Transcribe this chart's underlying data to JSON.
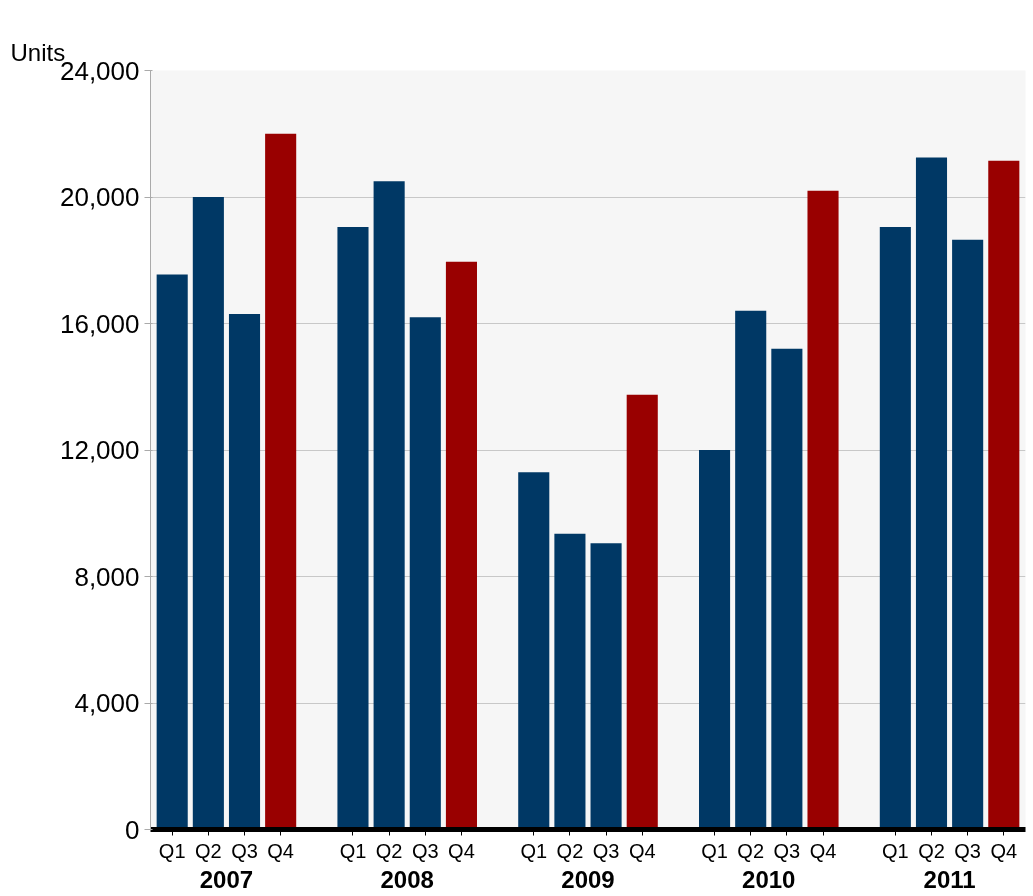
{
  "chart_data": {
    "type": "bar",
    "ylabel": "Units",
    "categories": [
      "Q1",
      "Q2",
      "Q3",
      "Q4",
      "Q1",
      "Q2",
      "Q3",
      "Q4",
      "Q1",
      "Q2",
      "Q3",
      "Q4",
      "Q1",
      "Q2",
      "Q3",
      "Q4",
      "Q1",
      "Q2",
      "Q3",
      "Q4"
    ],
    "values": [
      17550,
      20000,
      16300,
      22000,
      19050,
      20500,
      16200,
      17950,
      11300,
      9350,
      9050,
      13750,
      12000,
      16400,
      15200,
      20200,
      19050,
      21250,
      18650,
      21150
    ],
    "colors": [
      "#003865",
      "#003865",
      "#003865",
      "#990000",
      "#003865",
      "#003865",
      "#003865",
      "#990000",
      "#003865",
      "#003865",
      "#003865",
      "#990000",
      "#003865",
      "#003865",
      "#003865",
      "#990000",
      "#003865",
      "#003865",
      "#003865",
      "#990000"
    ],
    "annotations": [
      "2007",
      "2008",
      "2009",
      "2010",
      "2011"
    ],
    "ylim": [
      0,
      24000
    ],
    "yticks": [
      0,
      {
        "value": 4000,
        "label": "4,000"
      },
      {
        "value": 8000,
        "label": "8,000"
      },
      {
        "value": 12000,
        "label": "12,000"
      },
      {
        "value": 16000,
        "label": "16,000"
      },
      {
        "value": 20000,
        "label": "20,000"
      },
      {
        "value": 24000,
        "label": "24,000"
      }
    ],
    "grid": "y"
  }
}
